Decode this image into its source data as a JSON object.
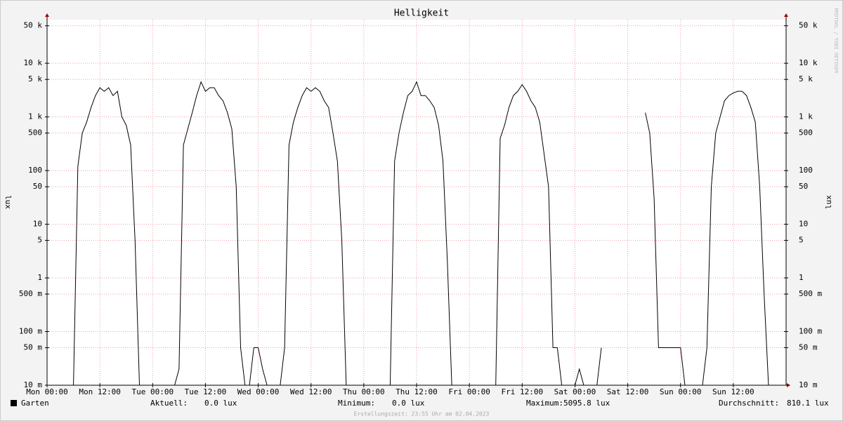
{
  "chart_data": {
    "type": "line",
    "title": "Helligkeit",
    "y_label": "lux",
    "log_scale": true,
    "grid": true,
    "xlim": [
      0,
      168
    ],
    "ylim": [
      0.01,
      65000
    ],
    "xticks": [
      {
        "value": 0,
        "label": "Mon 00:00"
      },
      {
        "value": 12,
        "label": "Mon 12:00"
      },
      {
        "value": 24,
        "label": "Tue 00:00"
      },
      {
        "value": 36,
        "label": "Tue 12:00"
      },
      {
        "value": 48,
        "label": "Wed 00:00"
      },
      {
        "value": 60,
        "label": "Wed 12:00"
      },
      {
        "value": 72,
        "label": "Thu 00:00"
      },
      {
        "value": 84,
        "label": "Thu 12:00"
      },
      {
        "value": 96,
        "label": "Fri 00:00"
      },
      {
        "value": 108,
        "label": "Fri 12:00"
      },
      {
        "value": 120,
        "label": "Sat 00:00"
      },
      {
        "value": 132,
        "label": "Sat 12:00"
      },
      {
        "value": 144,
        "label": "Sun 00:00"
      },
      {
        "value": 156,
        "label": "Sun 12:00"
      }
    ],
    "yticks": [
      {
        "value": 0.01,
        "label": "10 m"
      },
      {
        "value": 0.05,
        "label": "50 m"
      },
      {
        "value": 0.1,
        "label": "100 m"
      },
      {
        "value": 0.5,
        "label": "500 m"
      },
      1,
      5,
      10,
      50,
      100,
      500,
      {
        "value": 1000,
        "label": "1 k"
      },
      {
        "value": 5000,
        "label": "5 k"
      },
      {
        "value": 10000,
        "label": "10 k"
      },
      {
        "value": 50000,
        "label": "50 k"
      }
    ],
    "x": [
      0,
      1,
      2,
      3,
      4,
      5,
      6,
      7,
      8,
      9,
      10,
      11,
      12,
      13,
      14,
      15,
      16,
      17,
      18,
      19,
      20,
      21,
      22,
      23,
      24,
      25,
      26,
      27,
      28,
      29,
      30,
      31,
      32,
      33,
      34,
      35,
      36,
      37,
      38,
      39,
      40,
      41,
      42,
      43,
      44,
      45,
      46,
      47,
      48,
      49,
      50,
      51,
      52,
      53,
      54,
      55,
      56,
      57,
      58,
      59,
      60,
      61,
      62,
      63,
      64,
      65,
      66,
      67,
      68,
      69,
      70,
      71,
      72,
      73,
      74,
      75,
      76,
      77,
      78,
      79,
      80,
      81,
      82,
      83,
      84,
      85,
      86,
      87,
      88,
      89,
      90,
      91,
      92,
      93,
      94,
      95,
      96,
      97,
      98,
      99,
      100,
      101,
      102,
      103,
      104,
      105,
      106,
      107,
      108,
      109,
      110,
      111,
      112,
      113,
      114,
      115,
      116,
      117,
      118,
      119,
      120,
      121,
      122,
      123,
      124,
      125,
      126,
      127,
      128,
      129,
      130,
      131,
      132,
      133,
      134,
      135,
      136,
      137,
      138,
      139,
      140,
      141,
      142,
      143,
      144,
      145,
      146,
      147,
      148,
      149,
      150,
      151,
      152,
      153,
      154,
      155,
      156,
      157,
      158,
      159,
      160,
      161,
      162,
      163,
      164,
      165,
      166,
      167,
      168
    ],
    "series": [
      {
        "name": "Garten",
        "color": "#000000",
        "values": [
          0.01,
          0.01,
          0.01,
          0.01,
          0.01,
          0.01,
          0.01,
          120,
          500,
          800,
          1500,
          2500,
          3500,
          3000,
          3500,
          2500,
          3000,
          1000,
          700,
          300,
          5,
          0.01,
          0.01,
          0.01,
          0.01,
          0.01,
          0.01,
          0.01,
          0.01,
          0.01,
          0.02,
          300,
          600,
          1200,
          2500,
          4500,
          3000,
          3500,
          3500,
          2500,
          2000,
          1200,
          600,
          50,
          0.05,
          0.01,
          0.01,
          0.05,
          0.05,
          0.02,
          0.01,
          0.01,
          0.01,
          0.01,
          0.05,
          300,
          800,
          1500,
          2500,
          3500,
          3000,
          3500,
          3000,
          2000,
          1500,
          500,
          150,
          5,
          0.01,
          0.01,
          0.01,
          0.01,
          0.01,
          0.01,
          0.01,
          0.01,
          0.01,
          0.01,
          0.01,
          150,
          500,
          1200,
          2500,
          3000,
          4500,
          2500,
          2500,
          2000,
          1500,
          700,
          150,
          2,
          0.01,
          0.01,
          0.01,
          0.01,
          0.01,
          0.01,
          0.01,
          0.01,
          0.01,
          0.01,
          0.01,
          400,
          700,
          1500,
          2500,
          3000,
          4000,
          3000,
          2000,
          1500,
          800,
          200,
          50,
          0.05,
          0.05,
          0.01,
          0.01,
          0.01,
          0.01,
          0.02,
          0.01,
          0.01,
          0.01,
          0.01,
          0.05,
          null,
          null,
          null,
          null,
          null,
          null,
          null,
          null,
          null,
          1200,
          500,
          30,
          0.05,
          0.05,
          0.05,
          0.05,
          0.05,
          0.05,
          0.01,
          0.01,
          0.01,
          0.01,
          0.01,
          0.05,
          50,
          500,
          1000,
          2000,
          2500,
          2800,
          3000,
          3000,
          2500,
          1500,
          800,
          50,
          0.5,
          0.01,
          0.01,
          0.01,
          0.01,
          0.01
        ]
      }
    ],
    "stats": [
      {
        "label": "Aktuell:",
        "value": "0.0 lux"
      },
      {
        "label": "Minimum:",
        "value": "0.0 lux"
      },
      {
        "label": "Maximum:",
        "value": "5095.8 lux"
      },
      {
        "label": "Durchschnitt:",
        "value": "810.1 lux"
      }
    ],
    "footer": "Erstellungszeit: 23:55 Uhr am 02.04.2023",
    "watermark": "RRDTOOL / TOBI OETIKER"
  }
}
